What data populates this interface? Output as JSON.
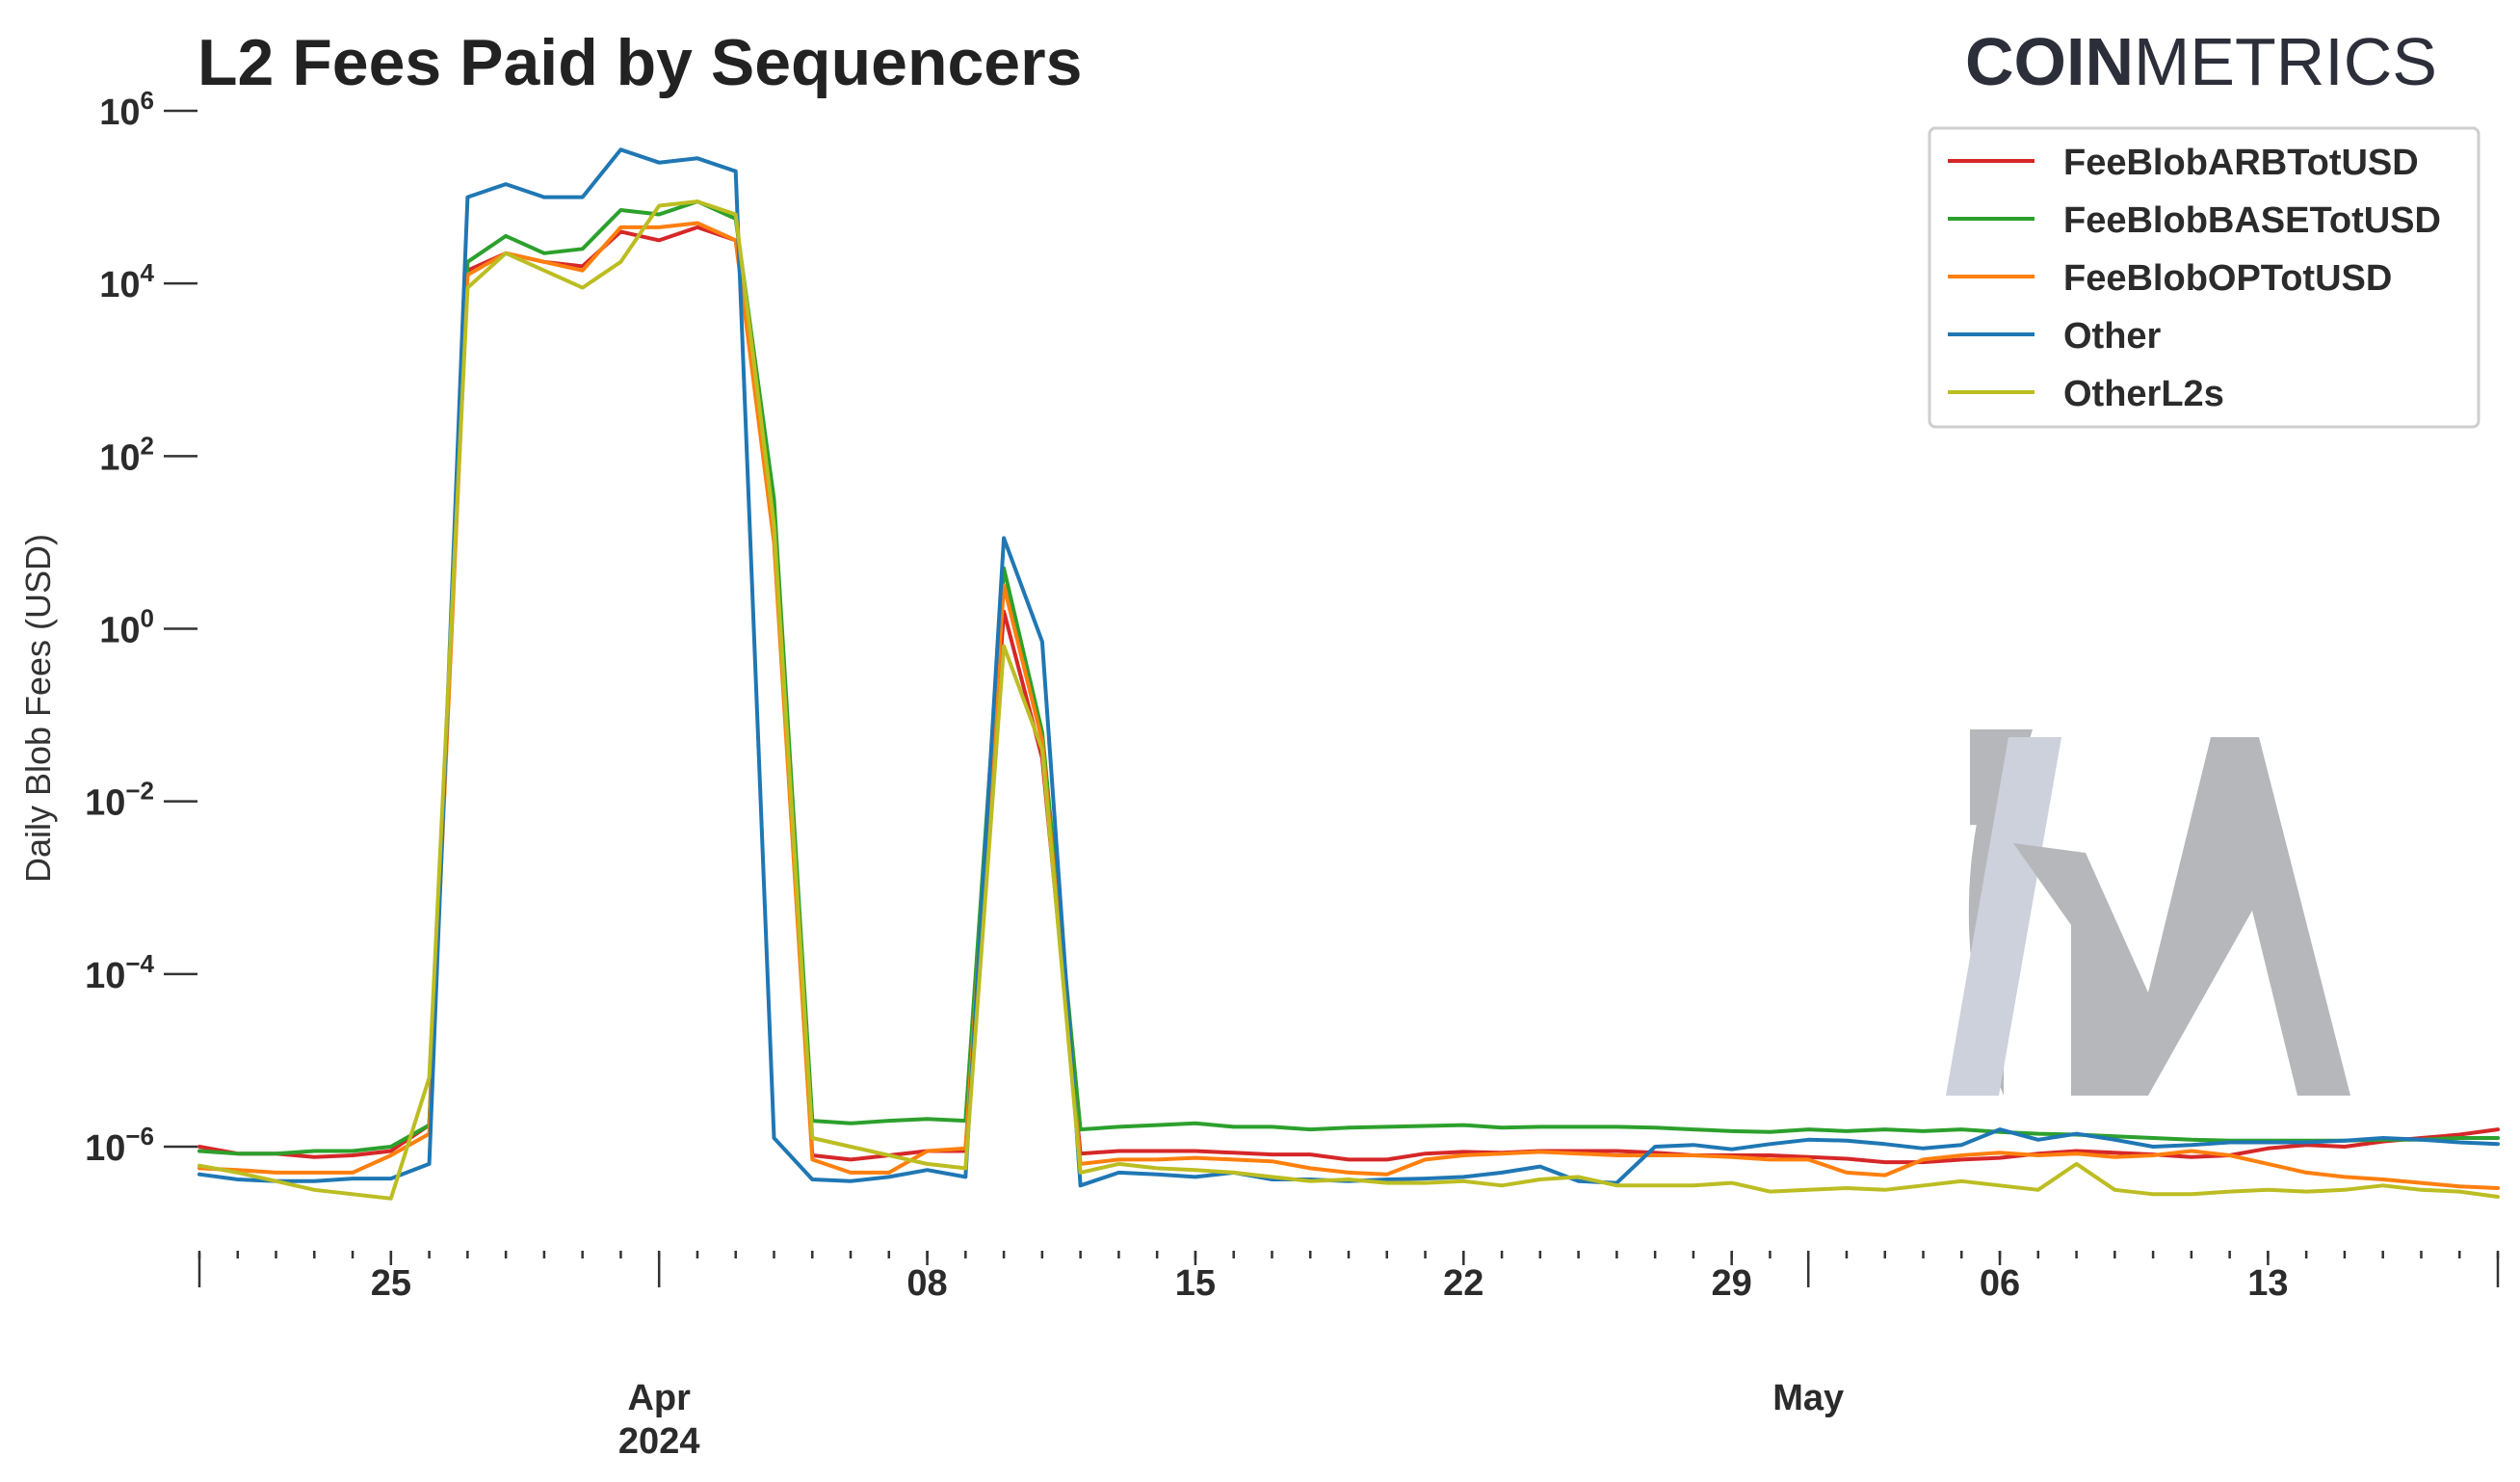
{
  "brand": {
    "bold": "COIN",
    "light": "METRICS"
  },
  "chart_data": {
    "type": "line",
    "title": "L2 Fees Paid by Sequencers",
    "xlabel": "",
    "ylabel": "Daily Blob Fees (USD)",
    "y_scale": "log",
    "ylim_exp": [
      -7,
      6
    ],
    "y_ticks": [
      {
        "base": "10",
        "exp": "6",
        "value_exp": 6
      },
      {
        "base": "10",
        "exp": "4",
        "value_exp": 4
      },
      {
        "base": "10",
        "exp": "2",
        "value_exp": 2
      },
      {
        "base": "10",
        "exp": "0",
        "value_exp": 0
      },
      {
        "base": "10",
        "exp": "−2",
        "value_exp": -2
      },
      {
        "base": "10",
        "exp": "−4",
        "value_exp": -4
      },
      {
        "base": "10",
        "exp": "−6",
        "value_exp": -6
      }
    ],
    "x_start_date": "2024-03-20",
    "x_num_days": 61,
    "x_ticks_minor": [
      {
        "label": "25",
        "day": 5
      },
      {
        "label": "08",
        "day": 19
      },
      {
        "label": "15",
        "day": 26
      },
      {
        "label": "22",
        "day": 33
      },
      {
        "label": "29",
        "day": 40
      },
      {
        "label": "06",
        "day": 47
      },
      {
        "label": "13",
        "day": 54
      }
    ],
    "x_ticks_major": [
      {
        "line1": "Apr",
        "line2": "2024",
        "day": 12
      },
      {
        "line1": "May",
        "line2": "",
        "day": 42
      }
    ],
    "legend_position": "top-right",
    "series": [
      {
        "name": "FeeBlobARBTotUSD",
        "color": "#d62728",
        "log10_values": [
          -6,
          -6.08,
          -6.08,
          -6.12,
          -6.1,
          -6.05,
          -5.75,
          4.15,
          4.35,
          4.25,
          4.2,
          4.6,
          4.5,
          4.65,
          4.5,
          1.2,
          -6.1,
          -6.15,
          -6.1,
          -6.05,
          -6.05,
          0.2,
          -1.5,
          -6.08,
          -6.05,
          -6.05,
          -6.05,
          -6.07,
          -6.09,
          -6.09,
          -6.15,
          -6.15,
          -6.08,
          -6.06,
          -6.07,
          -6.05,
          -6.05,
          -6.05,
          -6.07,
          -6.1,
          -6.1,
          -6.1,
          -6.12,
          -6.14,
          -6.18,
          -6.18,
          -6.15,
          -6.13,
          -6.08,
          -6.05,
          -6.07,
          -6.09,
          -6.12,
          -6.1,
          -6.02,
          -5.98,
          -6,
          -5.94,
          -5.9,
          -5.86,
          -5.8
        ]
      },
      {
        "name": "FeeBlobBASETotUSD",
        "color": "#2ca02c",
        "log10_values": [
          -6.05,
          -6.08,
          -6.08,
          -6.05,
          -6.05,
          -6,
          -5.75,
          4.25,
          4.55,
          4.35,
          4.4,
          4.85,
          4.8,
          4.95,
          4.75,
          1.5,
          -5.7,
          -5.73,
          -5.7,
          -5.68,
          -5.7,
          0.7,
          -1.2,
          -5.8,
          -5.77,
          -5.75,
          -5.73,
          -5.77,
          -5.77,
          -5.8,
          -5.78,
          -5.77,
          -5.76,
          -5.75,
          -5.78,
          -5.77,
          -5.77,
          -5.77,
          -5.78,
          -5.8,
          -5.82,
          -5.83,
          -5.8,
          -5.82,
          -5.8,
          -5.82,
          -5.8,
          -5.83,
          -5.85,
          -5.86,
          -5.88,
          -5.9,
          -5.92,
          -5.93,
          -5.93,
          -5.93,
          -5.93,
          -5.92,
          -5.92,
          -5.9,
          -5.9
        ]
      },
      {
        "name": "FeeBlobOPTotUSD",
        "color": "#ff7f0e",
        "log10_values": [
          -6.25,
          -6.27,
          -6.3,
          -6.3,
          -6.3,
          -6.1,
          -5.85,
          4.1,
          4.35,
          4.25,
          4.15,
          4.65,
          4.65,
          4.7,
          4.5,
          1.0,
          -6.15,
          -6.3,
          -6.3,
          -6.05,
          -6.02,
          0.5,
          -1.3,
          -6.2,
          -6.15,
          -6.15,
          -6.13,
          -6.15,
          -6.17,
          -6.25,
          -6.3,
          -6.32,
          -6.15,
          -6.1,
          -6.08,
          -6.06,
          -6.08,
          -6.1,
          -6.1,
          -6.1,
          -6.12,
          -6.15,
          -6.15,
          -6.3,
          -6.33,
          -6.15,
          -6.1,
          -6.07,
          -6.1,
          -6.08,
          -6.12,
          -6.1,
          -6.05,
          -6.1,
          -6.2,
          -6.3,
          -6.35,
          -6.38,
          -6.42,
          -6.46,
          -6.48
        ]
      },
      {
        "name": "Other",
        "color": "#1f77b4",
        "log10_values": [
          -6.32,
          -6.38,
          -6.4,
          -6.4,
          -6.37,
          -6.37,
          -6.2,
          5,
          5.15,
          5,
          5,
          5.55,
          5.4,
          5.45,
          5.3,
          -5.9,
          -6.38,
          -6.4,
          -6.35,
          -6.27,
          -6.35,
          1.05,
          -0.15,
          -6.45,
          -6.3,
          -6.32,
          -6.35,
          -6.3,
          -6.38,
          -6.38,
          -6.4,
          -6.38,
          -6.37,
          -6.35,
          -6.3,
          -6.23,
          -6.4,
          -6.42,
          -6.0,
          -5.98,
          -6.03,
          -5.97,
          -5.92,
          -5.93,
          -5.97,
          -6.02,
          -5.98,
          -5.8,
          -5.92,
          -5.85,
          -5.92,
          -6.0,
          -5.98,
          -5.95,
          -5.95,
          -5.95,
          -5.93,
          -5.9,
          -5.92,
          -5.95,
          -5.97
        ]
      },
      {
        "name": "OtherL2s",
        "color": "#bcbd22",
        "log10_values": [
          -6.22,
          -6.3,
          -6.4,
          -6.5,
          -6.55,
          -6.6,
          -5.2,
          3.95,
          4.35,
          4.15,
          3.95,
          4.25,
          4.9,
          4.95,
          4.8,
          1.2,
          -5.9,
          -6.0,
          -6.1,
          -6.2,
          -6.25,
          -0.2,
          -1.4,
          -6.3,
          -6.2,
          -6.25,
          -6.27,
          -6.3,
          -6.35,
          -6.4,
          -6.38,
          -6.42,
          -6.42,
          -6.4,
          -6.45,
          -6.38,
          -6.35,
          -6.45,
          -6.45,
          -6.45,
          -6.42,
          -6.52,
          -6.5,
          -6.48,
          -6.5,
          -6.45,
          -6.4,
          -6.45,
          -6.5,
          -6.2,
          -6.5,
          -6.55,
          -6.55,
          -6.52,
          -6.5,
          -6.52,
          -6.5,
          -6.45,
          -6.5,
          -6.52,
          -6.58
        ]
      }
    ]
  }
}
